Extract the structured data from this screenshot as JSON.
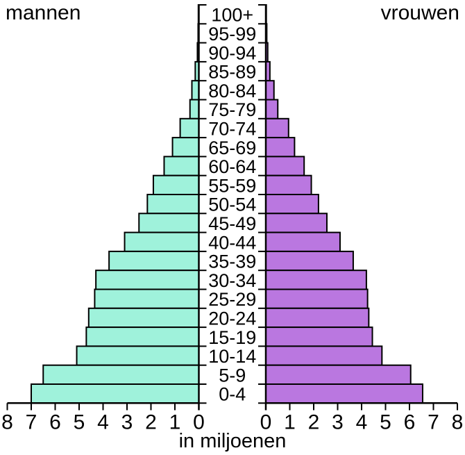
{
  "header": {
    "left_title": "mannen",
    "right_title": "vrouwen"
  },
  "axis": {
    "left_ticks": [
      "8",
      "7",
      "6",
      "5",
      "4",
      "3",
      "2",
      "1",
      "0"
    ],
    "right_ticks": [
      "0",
      "1",
      "2",
      "3",
      "4",
      "5",
      "6",
      "7",
      "8"
    ],
    "xlabel": "in miljoenen"
  },
  "colors": {
    "men_fill": "#9ff2db",
    "women_fill": "#ba77e0",
    "axis_line": "#000000",
    "background": "#ffffff"
  },
  "chart_data": {
    "type": "bar",
    "subtype": "population-pyramid",
    "title": "",
    "xlabel": "in miljoenen",
    "ylabel": "",
    "xlim": [
      0,
      8
    ],
    "tick_step": 1,
    "grid": false,
    "legend_position": "top-corners",
    "categories": [
      "100+",
      "95-99",
      "90-94",
      "85-89",
      "80-84",
      "75-79",
      "70-74",
      "65-69",
      "60-64",
      "55-59",
      "50-54",
      "45-49",
      "40-44",
      "35-39",
      "30-34",
      "25-29",
      "20-24",
      "15-19",
      "10-14",
      "5-9",
      "0-4"
    ],
    "series": [
      {
        "name": "mannen",
        "side": "left",
        "color": "#9ff2db",
        "values": [
          0.02,
          0.03,
          0.06,
          0.15,
          0.29,
          0.37,
          0.78,
          1.1,
          1.45,
          1.9,
          2.15,
          2.5,
          3.1,
          3.75,
          4.3,
          4.35,
          4.6,
          4.7,
          5.1,
          6.5,
          7.0
        ]
      },
      {
        "name": "vrouwen",
        "side": "right",
        "color": "#ba77e0",
        "values": [
          0.02,
          0.04,
          0.08,
          0.17,
          0.34,
          0.5,
          0.95,
          1.2,
          1.6,
          1.9,
          2.2,
          2.55,
          3.1,
          3.65,
          4.2,
          4.25,
          4.3,
          4.45,
          4.85,
          6.05,
          6.55
        ]
      }
    ]
  }
}
